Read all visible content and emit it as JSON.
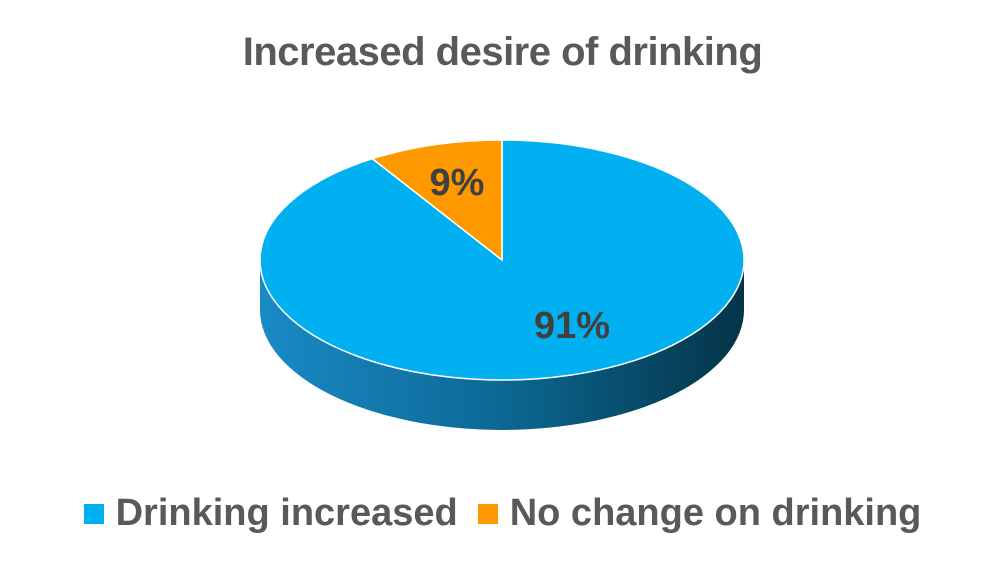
{
  "chart_data": {
    "type": "pie",
    "title": "Increased desire of drinking",
    "style": "3d",
    "categories": [
      "Drinking increased",
      "No change on drinking"
    ],
    "values": [
      91,
      9
    ],
    "labels": [
      "91%",
      "9%"
    ],
    "colors": [
      "#00B0F0",
      "#FF9900"
    ],
    "legend_position": "bottom"
  }
}
